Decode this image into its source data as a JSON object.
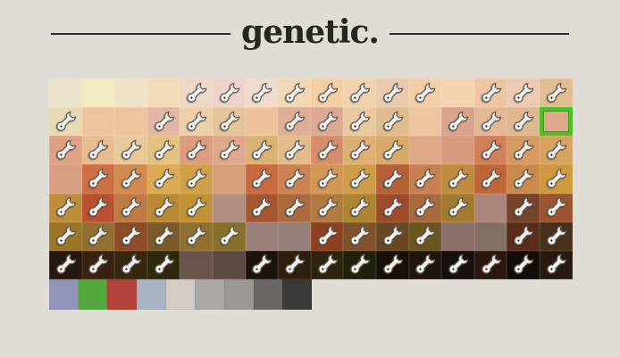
{
  "page": {
    "background_color": "#dfddd6"
  },
  "header": {
    "title": "genetic.",
    "text_color": "#26261f",
    "divider_color": "#2b2b28"
  },
  "palette": {
    "selected_border_color": "#4fc02a",
    "selected_cell": {
      "row": 2,
      "col": 16
    },
    "wrench_icon_name": "wrench-icon",
    "rows": [
      {
        "cells": [
          {
            "color": "#ebe2cb",
            "wrench": false
          },
          {
            "color": "#f2ecc0",
            "wrench": false
          },
          {
            "color": "#f0e2c4",
            "wrench": false
          },
          {
            "color": "#f4dcb8",
            "wrench": false
          },
          {
            "color": "#eed8c6",
            "wrench": true
          },
          {
            "color": "#ecd4cc",
            "wrench": true
          },
          {
            "color": "#efdccd",
            "wrench": true
          },
          {
            "color": "#f1d8b6",
            "wrench": true
          },
          {
            "color": "#f4cfa4",
            "wrench": true
          },
          {
            "color": "#f0d3ae",
            "wrench": true
          },
          {
            "color": "#e9ccb0",
            "wrench": true
          },
          {
            "color": "#f3cfa9",
            "wrench": true
          },
          {
            "color": "#f3d3ad",
            "wrench": false
          },
          {
            "color": "#ecc5a2",
            "wrench": true
          },
          {
            "color": "#eccab3",
            "wrench": true
          },
          {
            "color": "#e2bd92",
            "wrench": true
          }
        ]
      },
      {
        "cells": [
          {
            "color": "#e7dbb3",
            "wrench": true
          },
          {
            "color": "#eec49e",
            "wrench": false
          },
          {
            "color": "#edc49c",
            "wrench": false
          },
          {
            "color": "#e3b7a6",
            "wrench": true
          },
          {
            "color": "#ecd0ac",
            "wrench": true
          },
          {
            "color": "#e4c49a",
            "wrench": true
          },
          {
            "color": "#eec29b",
            "wrench": false
          },
          {
            "color": "#dfae96",
            "wrench": true
          },
          {
            "color": "#dcaa92",
            "wrench": true
          },
          {
            "color": "#e8c9a2",
            "wrench": true
          },
          {
            "color": "#e0bb8e",
            "wrench": true
          },
          {
            "color": "#ecc6a0",
            "wrench": false
          },
          {
            "color": "#d8a58c",
            "wrench": true
          },
          {
            "color": "#e5b895",
            "wrench": true
          },
          {
            "color": "#dfb891",
            "wrench": true
          },
          {
            "color": "#dca98d",
            "wrench": false,
            "selected": true
          }
        ]
      },
      {
        "cells": [
          {
            "color": "#dfa184",
            "wrench": true
          },
          {
            "color": "#e8bb90",
            "wrench": true
          },
          {
            "color": "#e9c89b",
            "wrench": true
          },
          {
            "color": "#e3c181",
            "wrench": true
          },
          {
            "color": "#dd9d7e",
            "wrench": true
          },
          {
            "color": "#e0a98f",
            "wrench": true
          },
          {
            "color": "#d9b372",
            "wrench": true
          },
          {
            "color": "#e2bd8a",
            "wrench": true
          },
          {
            "color": "#d78d6c",
            "wrench": true
          },
          {
            "color": "#ddb174",
            "wrench": true
          },
          {
            "color": "#d9a967",
            "wrench": true
          },
          {
            "color": "#dfa988",
            "wrench": false
          },
          {
            "color": "#d89a7e",
            "wrench": false
          },
          {
            "color": "#d2805a",
            "wrench": true
          },
          {
            "color": "#d79a62",
            "wrench": true
          },
          {
            "color": "#d6a45f",
            "wrench": true
          }
        ]
      },
      {
        "cells": [
          {
            "color": "#d99f83",
            "wrench": false
          },
          {
            "color": "#cc6f44",
            "wrench": true
          },
          {
            "color": "#d38a4e",
            "wrench": true
          },
          {
            "color": "#dcab54",
            "wrench": true
          },
          {
            "color": "#cfa148",
            "wrench": true
          },
          {
            "color": "#d6a179",
            "wrench": false
          },
          {
            "color": "#c96b41",
            "wrench": true
          },
          {
            "color": "#cc8354",
            "wrench": true
          },
          {
            "color": "#d29655",
            "wrench": true
          },
          {
            "color": "#cf9c4a",
            "wrench": true
          },
          {
            "color": "#b66038",
            "wrench": true
          },
          {
            "color": "#c98050",
            "wrench": true
          },
          {
            "color": "#c08b3e",
            "wrench": true
          },
          {
            "color": "#c06538",
            "wrench": true
          },
          {
            "color": "#c98a4c",
            "wrench": true
          },
          {
            "color": "#cf9a3f",
            "wrench": true
          }
        ]
      },
      {
        "cells": [
          {
            "color": "#bd8d3a",
            "wrench": true
          },
          {
            "color": "#b9502f",
            "wrench": true
          },
          {
            "color": "#bf7b43",
            "wrench": true
          },
          {
            "color": "#b98a33",
            "wrench": true
          },
          {
            "color": "#c29136",
            "wrench": true
          },
          {
            "color": "#b18f80",
            "wrench": false
          },
          {
            "color": "#a85632",
            "wrench": true
          },
          {
            "color": "#ad6b3d",
            "wrench": true
          },
          {
            "color": "#b17a40",
            "wrench": true
          },
          {
            "color": "#ad842f",
            "wrench": true
          },
          {
            "color": "#9e4a2b",
            "wrench": true
          },
          {
            "color": "#a86a3c",
            "wrench": true
          },
          {
            "color": "#a27a2e",
            "wrench": true
          },
          {
            "color": "#ab8579",
            "wrench": false
          },
          {
            "color": "#74432a",
            "wrench": true
          },
          {
            "color": "#9c5530",
            "wrench": true
          }
        ]
      },
      {
        "cells": [
          {
            "color": "#9c7428",
            "wrench": true
          },
          {
            "color": "#947030",
            "wrench": true
          },
          {
            "color": "#8f4a28",
            "wrench": true
          },
          {
            "color": "#7a5a28",
            "wrench": true
          },
          {
            "color": "#8f7030",
            "wrench": true
          },
          {
            "color": "#88702a",
            "wrench": true
          },
          {
            "color": "#9a8078",
            "wrench": false
          },
          {
            "color": "#948078",
            "wrench": false
          },
          {
            "color": "#8c4020",
            "wrench": true
          },
          {
            "color": "#80522c",
            "wrench": true
          },
          {
            "color": "#684824",
            "wrench": true
          },
          {
            "color": "#6a5420",
            "wrench": true
          },
          {
            "color": "#8a7068",
            "wrench": false
          },
          {
            "color": "#827064",
            "wrench": false
          },
          {
            "color": "#5a2c1c",
            "wrench": true
          },
          {
            "color": "#48301c",
            "wrench": true
          }
        ]
      },
      {
        "cells": [
          {
            "color": "#241810",
            "wrench": true
          },
          {
            "color": "#38220f",
            "wrench": true
          },
          {
            "color": "#36280f",
            "wrench": true
          },
          {
            "color": "#2e280e",
            "wrench": true
          },
          {
            "color": "#68544a",
            "wrench": false
          },
          {
            "color": "#5c4a42",
            "wrench": false
          },
          {
            "color": "#1c120b",
            "wrench": true
          },
          {
            "color": "#2e1e0d",
            "wrench": true
          },
          {
            "color": "#2c240e",
            "wrench": true
          },
          {
            "color": "#20200c",
            "wrench": true
          },
          {
            "color": "#180f08",
            "wrench": true
          },
          {
            "color": "#20150d",
            "wrench": true
          },
          {
            "color": "#170f0a",
            "wrench": true
          },
          {
            "color": "#2a180c",
            "wrench": true
          },
          {
            "color": "#120d08",
            "wrench": true
          },
          {
            "color": "#281a10",
            "wrench": true
          }
        ]
      }
    ],
    "bottom_row": [
      {
        "color": "#9394ba"
      },
      {
        "color": "#54a93c"
      },
      {
        "color": "#b2423b"
      },
      {
        "color": "#a9b2c1"
      },
      {
        "color": "#d3cdc5"
      },
      {
        "color": "#aba8a5"
      },
      {
        "color": "#9c9896"
      },
      {
        "color": "#6c6765"
      },
      {
        "color": "#3b3a38"
      }
    ]
  }
}
